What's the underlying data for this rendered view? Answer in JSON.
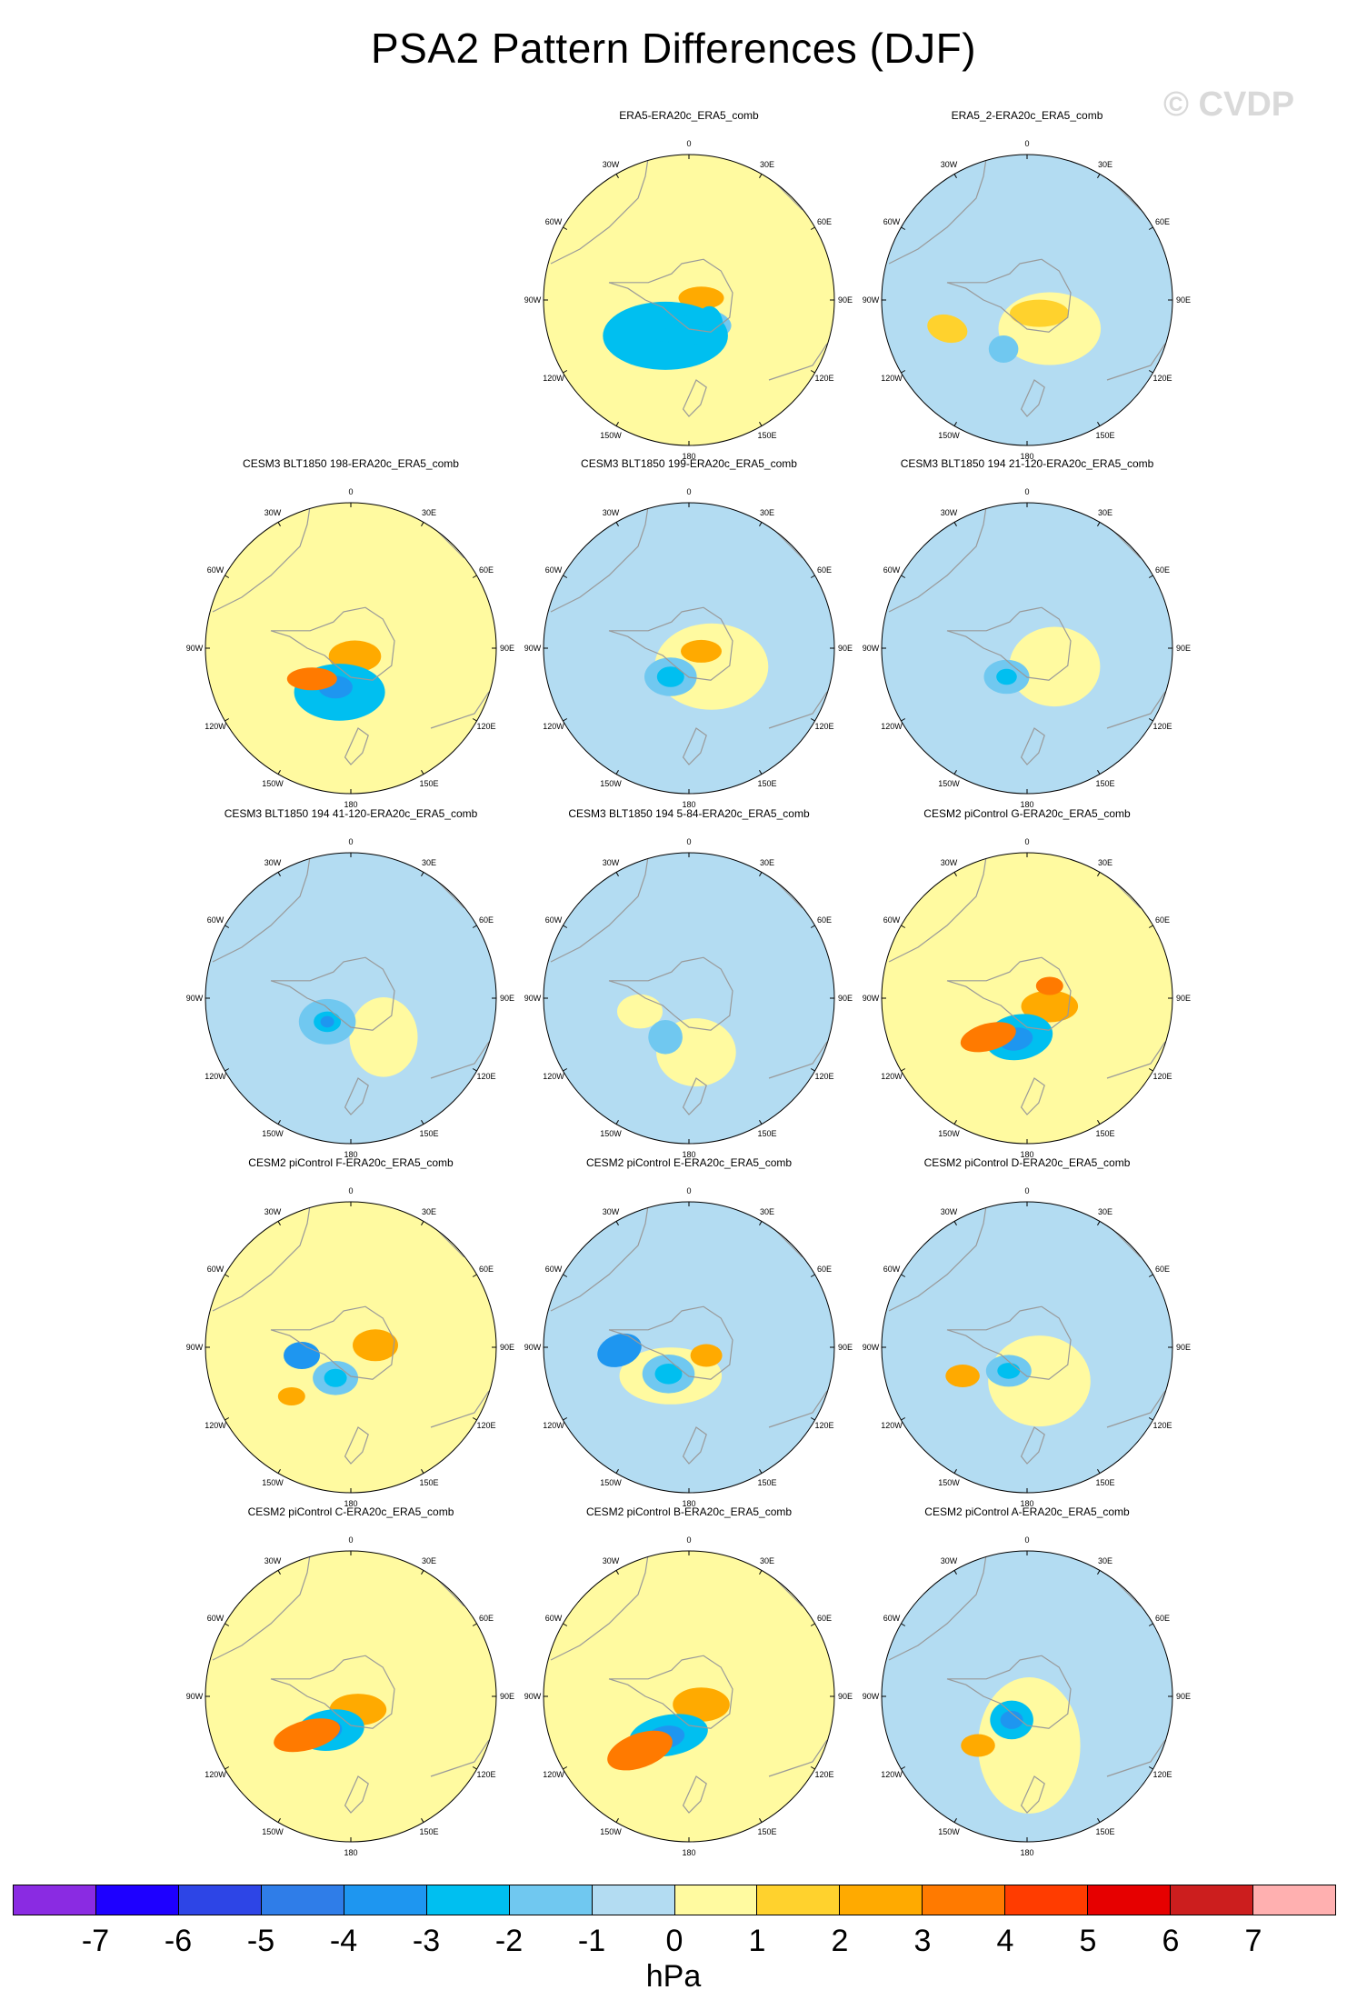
{
  "title": "PSA2 Pattern Differences (DJF)",
  "watermark": "© CVDP",
  "units": "hPa",
  "colors": {
    "land": "#999999",
    "boundary": "#555555",
    "bins": [
      "#8a2be2",
      "#1e00ff",
      "#2d45e6",
      "#2f7de8",
      "#1e96f0",
      "#00bff0",
      "#70c8f0",
      "#b3dcf2",
      "#fffaa0",
      "#ffd22d",
      "#ffaa00",
      "#ff7a00",
      "#ff3c00",
      "#e60000",
      "#cc1e1e",
      "#ffb0b0"
    ]
  },
  "colorbar": {
    "ticks": [
      "-7",
      "-6",
      "-5",
      "-4",
      "-3",
      "-2",
      "-1",
      "0",
      "1",
      "2",
      "3",
      "4",
      "5",
      "6",
      "7"
    ]
  },
  "longitude_labels": [
    "0",
    "30E",
    "60E",
    "90E",
    "120E",
    "150E",
    "180",
    "150W",
    "120W",
    "90W",
    "60W",
    "30W"
  ],
  "panels": [
    {
      "title": "ERA5-ERA20c_ERA5_comb",
      "bg": "yellow",
      "features": [
        [
          "blue",
          125,
          103,
          40,
          17,
          0
        ],
        [
          "orange",
          140,
          130,
          20,
          10,
          0
        ],
        [
          "blue",
          132,
          103,
          15,
          17,
          0
        ],
        [
          "blue",
          148,
          103,
          12,
          17,
          0
        ],
        [
          "blue",
          105,
          93,
          55,
          30,
          0
        ],
        [
          "blue",
          113,
          100,
          20,
          12,
          -10
        ],
        [
          "blue",
          125,
          95,
          20,
          10,
          0
        ]
      ],
      "values": [
        -3,
        -2,
        2
      ]
    },
    {
      "title": "ERA5_2-ERA20c_ERA5_comb",
      "bg": "blue",
      "features": [
        [
          "yellow",
          150,
          100,
          45,
          32,
          0
        ],
        [
          "orange",
          140,
          115,
          26,
          12,
          0
        ],
        [
          "orange",
          50,
          100,
          18,
          12,
          15
        ],
        [
          "blue",
          105,
          80,
          13,
          12,
          0
        ]
      ],
      "values": [
        -2,
        1
      ]
    },
    {
      "title": "CESM3 BLT1850 198-ERA20c_ERA5_comb",
      "bg": "yellow",
      "features": [
        [
          "orange",
          132,
          120,
          23,
          14,
          0
        ],
        [
          "blue",
          117,
          85,
          40,
          25,
          0
        ],
        [
          "blue",
          113,
          90,
          15,
          10,
          0
        ],
        [
          "orange",
          90,
          98,
          22,
          10,
          0
        ]
      ],
      "values": [
        -4,
        -3,
        2,
        3
      ]
    },
    {
      "title": "CESM3 BLT1850 199-ERA20c_ERA5_comb",
      "bg": "blue",
      "features": [
        [
          "yellow",
          150,
          110,
          50,
          38,
          0
        ],
        [
          "orange",
          140,
          125,
          18,
          10,
          0
        ],
        [
          "blue",
          110,
          100,
          23,
          17,
          0
        ],
        [
          "blue",
          110,
          100,
          12,
          9,
          0
        ]
      ],
      "values": [
        -3,
        -2,
        2
      ]
    },
    {
      "title": "CESM3 BLT1850 194 21-120-ERA20c_ERA5_comb",
      "bg": "blue",
      "features": [
        [
          "yellow",
          155,
          110,
          40,
          35,
          0
        ],
        [
          "blue",
          108,
          100,
          20,
          15,
          0
        ],
        [
          "blue",
          108,
          100,
          9,
          7,
          0
        ]
      ],
      "values": [
        -3,
        -2
      ]
    },
    {
      "title": "CESM3 BLT1850 194 41-120-ERA20c_ERA5_comb",
      "bg": "blue",
      "features": [
        [
          "yellow",
          160,
          90,
          30,
          35,
          0
        ],
        [
          "blue",
          105,
          105,
          25,
          20,
          0
        ],
        [
          "blue",
          105,
          105,
          12,
          9,
          0
        ],
        [
          "blue",
          105,
          105,
          6,
          5,
          0
        ]
      ],
      "values": [
        -4,
        -3,
        -2
      ]
    },
    {
      "title": "CESM3 BLT1850 194 5-84-ERA20c_ERA5_comb",
      "bg": "blue",
      "features": [
        [
          "yellow",
          135,
          75,
          35,
          30,
          0
        ],
        [
          "yellow",
          80,
          115,
          20,
          15,
          0
        ],
        [
          "blue",
          105,
          90,
          15,
          15,
          0
        ]
      ],
      "values": [
        -2,
        1
      ]
    },
    {
      "title": "CESM2 piControl G-ERA20c_ERA5_comb",
      "bg": "yellow",
      "features": [
        [
          "orange",
          150,
          120,
          25,
          14,
          0
        ],
        [
          "blue",
          120,
          90,
          30,
          20,
          -10
        ],
        [
          "blue",
          117,
          88,
          15,
          10,
          -10
        ],
        [
          "orange",
          90,
          90,
          25,
          12,
          -15
        ],
        [
          "orange",
          150,
          140,
          12,
          8,
          0
        ]
      ],
      "values": [
        -5,
        -4,
        -3,
        2,
        3
      ]
    },
    {
      "title": "CESM2 piControl F-ERA20c_ERA5_comb",
      "bg": "yellow",
      "features": [
        [
          "blue",
          113,
          98,
          20,
          15,
          0
        ],
        [
          "blue",
          113,
          98,
          10,
          8,
          0
        ],
        [
          "orange",
          152,
          130,
          20,
          14,
          0
        ],
        [
          "blue",
          80,
          120,
          16,
          12,
          0
        ],
        [
          "orange",
          70,
          80,
          12,
          8,
          0
        ]
      ],
      "values": [
        -4,
        -3,
        -2,
        2
      ]
    },
    {
      "title": "CESM2 piControl E-ERA20c_ERA5_comb",
      "bg": "blue",
      "features": [
        [
          "yellow",
          110,
          100,
          45,
          25,
          0
        ],
        [
          "orange",
          145,
          120,
          14,
          10,
          0
        ],
        [
          "blue",
          108,
          102,
          23,
          17,
          0
        ],
        [
          "blue",
          108,
          102,
          12,
          9,
          0
        ],
        [
          "blue",
          60,
          125,
          20,
          14,
          -20
        ]
      ],
      "values": [
        -4,
        -3,
        -2,
        2
      ]
    },
    {
      "title": "CESM2 piControl D-ERA20c_ERA5_comb",
      "bg": "blue",
      "features": [
        [
          "yellow",
          140,
          95,
          45,
          40,
          0
        ],
        [
          "blue",
          110,
          105,
          20,
          14,
          0
        ],
        [
          "blue",
          110,
          105,
          10,
          7,
          0
        ],
        [
          "orange",
          65,
          100,
          15,
          10,
          0
        ]
      ],
      "values": [
        -4,
        -3,
        -2,
        2
      ]
    },
    {
      "title": "CESM2 piControl C-ERA20c_ERA5_comb",
      "bg": "yellow",
      "features": [
        [
          "orange",
          135,
          115,
          25,
          14,
          0
        ],
        [
          "blue",
          108,
          95,
          30,
          18,
          -8
        ],
        [
          "blue",
          105,
          95,
          13,
          9,
          -8
        ],
        [
          "orange",
          85,
          90,
          30,
          13,
          -15
        ]
      ],
      "values": [
        -4,
        -3,
        2,
        3
      ]
    },
    {
      "title": "CESM2 piControl B-ERA20c_ERA5_comb",
      "bg": "yellow",
      "features": [
        [
          "orange",
          140,
          120,
          25,
          15,
          0
        ],
        [
          "blue",
          108,
          90,
          35,
          18,
          -10
        ],
        [
          "blue",
          105,
          88,
          17,
          10,
          -10
        ],
        [
          "orange",
          80,
          75,
          30,
          15,
          -20
        ]
      ],
      "values": [
        -5,
        -4,
        -3,
        2,
        3
      ]
    },
    {
      "title": "CESM2 piControl A-ERA20c_ERA5_comb",
      "bg": "blue",
      "features": [
        [
          "yellow",
          130,
          80,
          45,
          60,
          0
        ],
        [
          "blue",
          113,
          105,
          19,
          17,
          0
        ],
        [
          "blue",
          113,
          105,
          10,
          8,
          0
        ],
        [
          "orange",
          80,
          80,
          15,
          10,
          0
        ]
      ],
      "values": [
        -4,
        -3,
        2
      ]
    }
  ]
}
